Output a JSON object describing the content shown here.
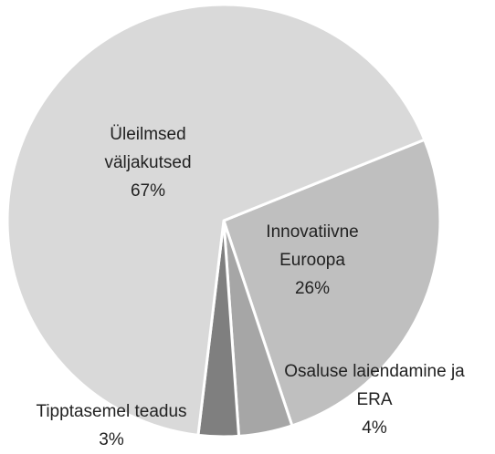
{
  "chart_data": {
    "type": "pie",
    "categories": [
      "Innovatiivne Euroopa",
      "Osaluse laiendamine ja ERA",
      "Tipptasemel teadus",
      "Üleilmsed väljakutsed"
    ],
    "values": [
      26,
      4,
      3,
      67
    ],
    "value_labels": [
      "26%",
      "4%",
      "3%",
      "67%"
    ],
    "colors": [
      "#bfbfbf",
      "#a6a6a6",
      "#7f7f7f",
      "#d9d9d9"
    ]
  }
}
